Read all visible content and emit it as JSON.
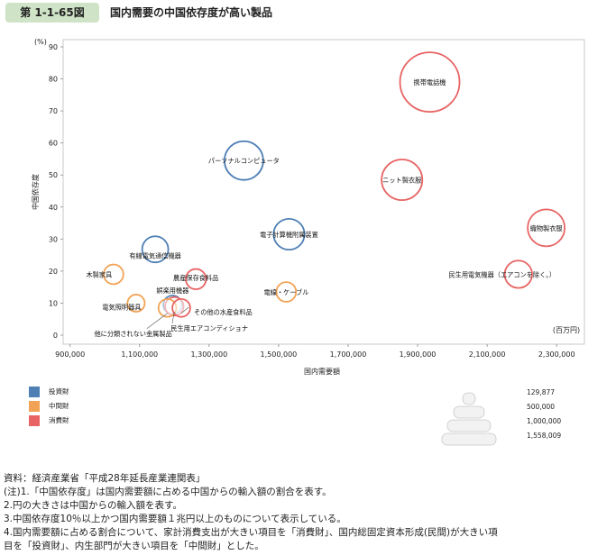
{
  "header": {
    "figure_number": "第 1-1-65図",
    "title": "国内需要の中国依存度が高い製品"
  },
  "chart_data": {
    "type": "scatter",
    "title": "",
    "xlabel": "国内需要額",
    "ylabel": "中国依存度",
    "y_unit": "(%)",
    "x_unit": "(百万円)",
    "xlim": [
      880000,
      2380000
    ],
    "ylim": [
      0,
      90
    ],
    "xticks": [
      900000,
      1100000,
      1300000,
      1500000,
      1700000,
      1900000,
      2100000,
      2300000
    ],
    "xtick_labels": [
      "900,000",
      "1,100,000",
      "1,300,000",
      "1,500,000",
      "1,700,000",
      "1,900,000",
      "2,100,000",
      "2,300,000"
    ],
    "yticks": [
      0,
      10,
      20,
      30,
      40,
      50,
      60,
      70,
      80,
      90
    ],
    "ytick_labels": [
      "0",
      "10",
      "20",
      "30",
      "40",
      "50",
      "60",
      "70",
      "80",
      "90"
    ],
    "categories": [
      {
        "name": "投資財",
        "color": "#4e7fb4"
      },
      {
        "name": "中間財",
        "color": "#f2a254"
      },
      {
        "name": "消費財",
        "color": "#e86464"
      }
    ],
    "points": [
      {
        "label": "携帯電話機",
        "category": "消費財",
        "x": 1935000,
        "y": 79,
        "size": 1558009
      },
      {
        "label": "パーソナルコンピュータ",
        "category": "投資財",
        "x": 1400000,
        "y": 54.5,
        "size": 660000
      },
      {
        "label": "ニット製衣服",
        "category": "消費財",
        "x": 1855000,
        "y": 48.5,
        "size": 730000
      },
      {
        "label": "織物製衣服",
        "category": "消費財",
        "x": 2270000,
        "y": 33.5,
        "size": 600000
      },
      {
        "label": "電子計算機附属装置",
        "category": "投資財",
        "x": 1530000,
        "y": 31.5,
        "size": 420000
      },
      {
        "label": "有線電気通信機器",
        "category": "投資財",
        "x": 1145000,
        "y": 26.8,
        "size": 300000
      },
      {
        "label": "民生用電気機器（エアコンを除く。）",
        "category": "消費財",
        "x": 2190000,
        "y": 19,
        "size": 330000
      },
      {
        "label": "木製家具",
        "category": "中間財",
        "x": 1025000,
        "y": 19,
        "size": 170000
      },
      {
        "label": "農産保存食料品",
        "category": "消費財",
        "x": 1262000,
        "y": 17.5,
        "size": 180000
      },
      {
        "label": "電線・ケーブル",
        "category": "中間財",
        "x": 1522000,
        "y": 13.5,
        "size": 170000
      },
      {
        "label": "娯楽用機器",
        "category": "投資財",
        "x": 1195000,
        "y": 9.5,
        "size": 150000
      },
      {
        "label": "電気照明器具",
        "category": "中間財",
        "x": 1090000,
        "y": 10,
        "size": 129877
      },
      {
        "label": "他に分類されない金属製品",
        "category": "中間財",
        "x": 1180000,
        "y": 8.5,
        "size": 140000
      },
      {
        "label": "その他の水産食料品",
        "category": "消費財",
        "x": 1220000,
        "y": 8.5,
        "size": 140000
      },
      {
        "label": "民生用エアコンディショナ",
        "category": "消費財",
        "x": 1200000,
        "y": 9,
        "size": 150000
      }
    ],
    "size_legend": [
      {
        "value": 129877,
        "label": "129,877"
      },
      {
        "value": 500000,
        "label": "500,000"
      },
      {
        "value": 1000000,
        "label": "1,000,000"
      },
      {
        "value": 1558009,
        "label": "1,558,009"
      }
    ]
  },
  "legend": {
    "items": [
      {
        "label": "投資財",
        "color": "#4e7fb4"
      },
      {
        "label": "中間財",
        "color": "#f2a254"
      },
      {
        "label": "消費財",
        "color": "#e86464"
      }
    ]
  },
  "notes": [
    "資料：経済産業省「平成28年延長産業連関表」",
    "(注)1.「中国依存度」は国内需要額に占める中国からの輸入額の割合を表す。",
    "2.円の大きさは中国からの輸入額を表す。",
    "3.中国依存度10％以上かつ国内需要額１兆円以上のものについて表示している。",
    "4.国内需要額に占める割合について、家計消費支出が大きい項目を「消費財」、国内総固定資本形成(民間)が大きい項",
    "目を「投資財」、内生部門が大きい項目を「中間財」とした。"
  ]
}
